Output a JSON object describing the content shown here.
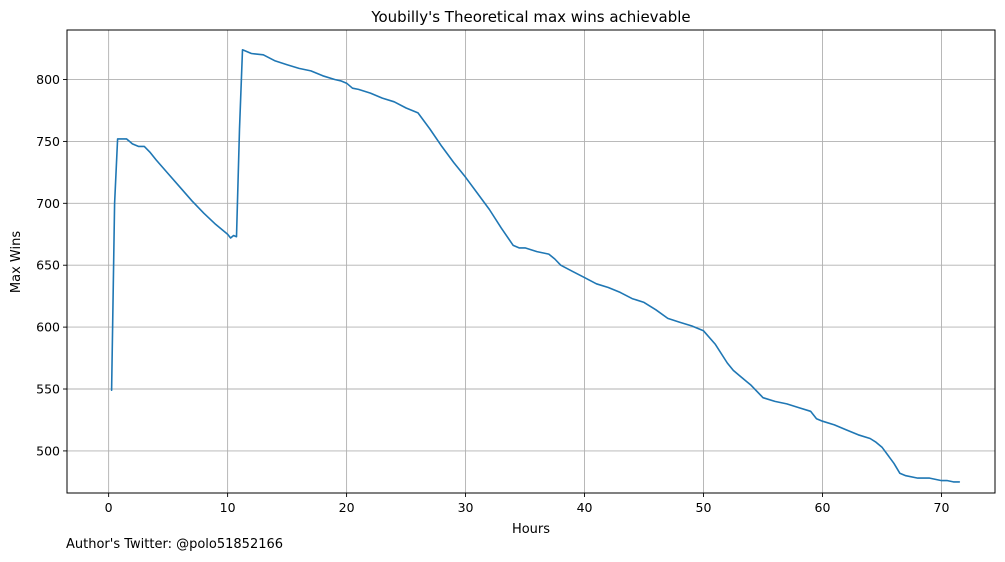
{
  "footer": "Author's Twitter: @polo51852166",
  "chart_data": {
    "type": "line",
    "title": "Youbilly's Theoretical max wins achievable",
    "xlabel": "Hours",
    "ylabel": "Max Wins",
    "xlim": [
      -3.5,
      74.5
    ],
    "ylim": [
      466,
      840
    ],
    "xticks": [
      0,
      10,
      20,
      30,
      40,
      50,
      60,
      70
    ],
    "yticks": [
      500,
      550,
      600,
      650,
      700,
      750,
      800
    ],
    "grid": true,
    "color": "#1f77b4",
    "series": [
      {
        "x": [
          0.25,
          0.5,
          0.75,
          1.0,
          1.5,
          1.75,
          2.0,
          2.5,
          3.0,
          3.5,
          4.0,
          5.0,
          6.0,
          7.0,
          8.0,
          9.0,
          10.0,
          10.25,
          10.5,
          10.75,
          11.0,
          11.25,
          11.5,
          12.0,
          13.0,
          14.0,
          15.0,
          16.0,
          17.0,
          18.0,
          19.0,
          19.5,
          20.0,
          20.5,
          21.0,
          22.0,
          23.0,
          24.0,
          25.0,
          26.0,
          27.0,
          28.0,
          29.0,
          30.0,
          31.0,
          32.0,
          33.0,
          34.0,
          34.5,
          35.0,
          36.0,
          37.0,
          37.5,
          38.0,
          39.0,
          40.0,
          41.0,
          42.0,
          43.0,
          44.0,
          45.0,
          46.0,
          47.0,
          48.0,
          49.0,
          50.0,
          51.0,
          52.0,
          52.5,
          53.0,
          54.0,
          55.0,
          56.0,
          57.0,
          58.0,
          59.0,
          59.5,
          60.0,
          61.0,
          62.0,
          63.0,
          64.0,
          64.5,
          65.0,
          66.0,
          66.5,
          67.0,
          68.0,
          69.0,
          70.0,
          70.5,
          71.0,
          71.5
        ],
        "y": [
          549,
          700,
          752,
          752,
          752,
          750,
          748,
          746,
          746,
          741,
          735,
          724,
          713,
          702,
          692,
          683,
          675,
          672,
          674,
          673,
          760,
          824,
          823,
          821,
          820,
          815,
          812,
          809,
          807,
          803,
          800,
          799,
          797,
          793,
          792,
          789,
          785,
          782,
          777,
          773,
          760,
          746,
          733,
          721,
          708,
          695,
          680,
          666,
          664,
          664,
          661,
          659,
          655,
          650,
          645,
          640,
          635,
          632,
          628,
          623,
          620,
          614,
          607,
          604,
          601,
          597,
          586,
          571,
          565,
          561,
          553,
          543,
          540,
          538,
          535,
          532,
          526,
          524,
          521,
          517,
          513,
          510,
          507,
          503,
          490,
          482,
          480,
          478,
          478,
          476,
          476,
          475,
          475
        ]
      }
    ]
  }
}
